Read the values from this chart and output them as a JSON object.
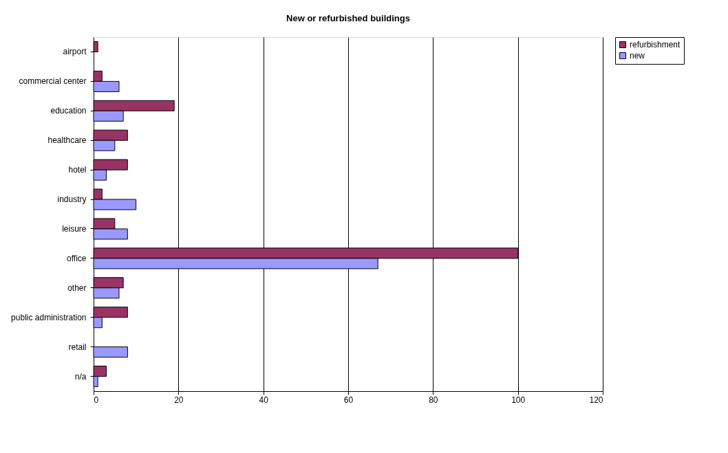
{
  "chart_data": {
    "type": "bar",
    "orientation": "horizontal",
    "title": "New or refurbished buildings",
    "categories": [
      "airport",
      "commercial center",
      "education",
      "healthcare",
      "hotel",
      "industry",
      "leisure",
      "office",
      "other",
      "public administration",
      "retail",
      "n/a"
    ],
    "series": [
      {
        "name": "refurbishment",
        "color": "#993366",
        "values": [
          1,
          2,
          19,
          8,
          8,
          2,
          5,
          100,
          7,
          8,
          null,
          3
        ]
      },
      {
        "name": "new",
        "color": "#9999ff",
        "values": [
          null,
          6,
          7,
          5,
          3,
          10,
          8,
          67,
          6,
          2,
          8,
          1
        ]
      }
    ],
    "xlim": [
      0,
      120
    ],
    "xticks": [
      0,
      20,
      40,
      60,
      80,
      100,
      120
    ],
    "grid": "x",
    "legend": "right"
  }
}
